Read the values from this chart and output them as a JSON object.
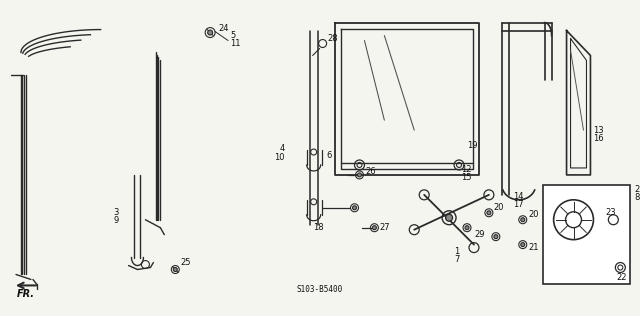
{
  "part_code": "S103-B5400",
  "bg_color": "#f5f5f0",
  "line_color": "#2a2a2a",
  "text_color": "#111111",
  "fig_width": 6.4,
  "fig_height": 3.16,
  "dpi": 100
}
